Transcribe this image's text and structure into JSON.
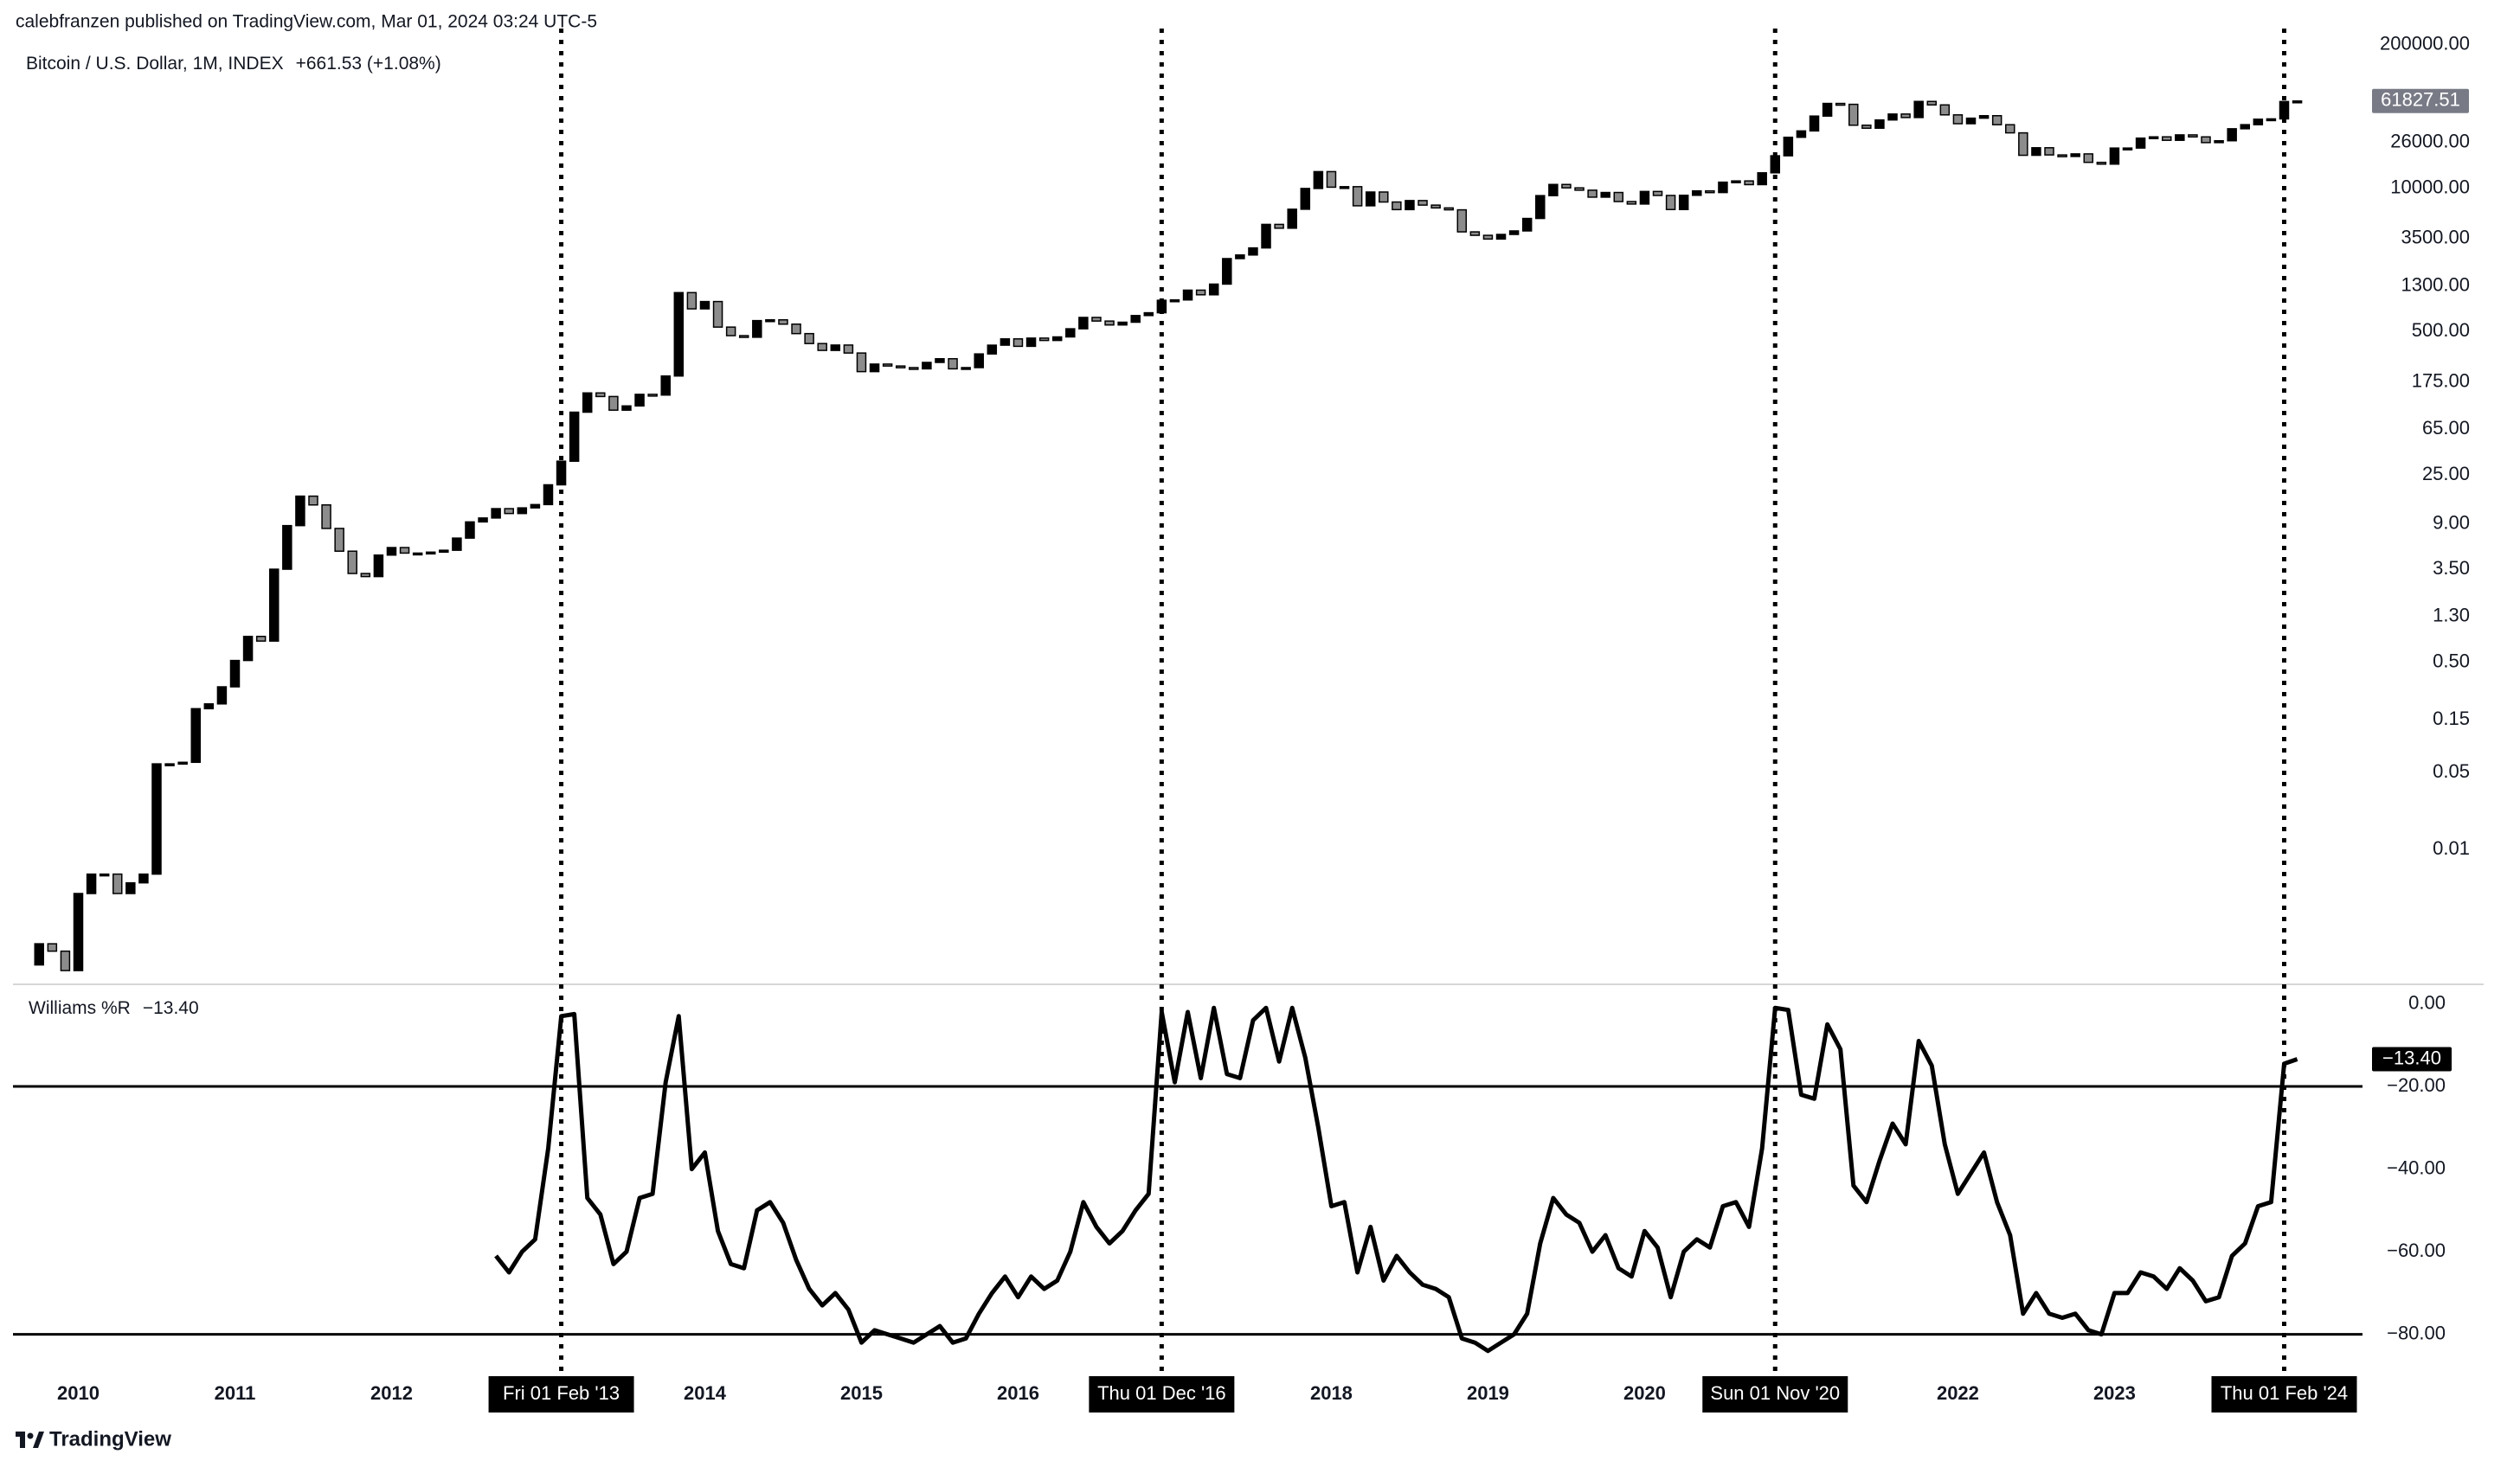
{
  "header": {
    "caption": "calebfranzen published on TradingView.com, Mar 01, 2024 03:24 UTC-5"
  },
  "footer": {
    "brand": "TradingView"
  },
  "chart_data": [
    {
      "type": "candlestick",
      "title": "Bitcoin / U.S. Dollar, 1M, INDEX",
      "change": "+661.53 (+1.08%)",
      "log_scale": true,
      "up_color": "#000000",
      "down_color": "#8c8c8c",
      "xlim": [
        "2009-07",
        "2024-08"
      ],
      "ylim": [
        0.0006,
        510000
      ],
      "yticks": [
        {
          "value": 200000,
          "label": "200000.00"
        },
        {
          "value": 26000,
          "label": "26000.00"
        },
        {
          "value": 10000,
          "label": "10000.00"
        },
        {
          "value": 3500,
          "label": "3500.00"
        },
        {
          "value": 1300,
          "label": "1300.00"
        },
        {
          "value": 500,
          "label": "500.00"
        },
        {
          "value": 175,
          "label": "175.00"
        },
        {
          "value": 65,
          "label": "65.00"
        },
        {
          "value": 25,
          "label": "25.00"
        },
        {
          "value": 9,
          "label": "9.00"
        },
        {
          "value": 3.5,
          "label": "3.50"
        },
        {
          "value": 1.3,
          "label": "1.30"
        },
        {
          "value": 0.5,
          "label": "0.50"
        },
        {
          "value": 0.15,
          "label": "0.15"
        },
        {
          "value": 0.05,
          "label": "0.05"
        },
        {
          "value": 0.01,
          "label": "0.01"
        }
      ],
      "first_open": 0.0009,
      "x": [
        "2009-10",
        "2009-11",
        "2009-12",
        "2010-01",
        "2010-02",
        "2010-03",
        "2010-04",
        "2010-05",
        "2010-06",
        "2010-07",
        "2010-08",
        "2010-09",
        "2010-10",
        "2010-11",
        "2010-12",
        "2011-01",
        "2011-02",
        "2011-03",
        "2011-04",
        "2011-05",
        "2011-06",
        "2011-07",
        "2011-08",
        "2011-09",
        "2011-10",
        "2011-11",
        "2011-12",
        "2012-01",
        "2012-02",
        "2012-03",
        "2012-04",
        "2012-05",
        "2012-06",
        "2012-07",
        "2012-08",
        "2012-09",
        "2012-10",
        "2012-11",
        "2012-12",
        "2013-01",
        "2013-02",
        "2013-03",
        "2013-04",
        "2013-05",
        "2013-06",
        "2013-07",
        "2013-08",
        "2013-09",
        "2013-10",
        "2013-11",
        "2013-12",
        "2014-01",
        "2014-02",
        "2014-03",
        "2014-04",
        "2014-05",
        "2014-06",
        "2014-07",
        "2014-08",
        "2014-09",
        "2014-10",
        "2014-11",
        "2014-12",
        "2015-01",
        "2015-02",
        "2015-03",
        "2015-04",
        "2015-05",
        "2015-06",
        "2015-07",
        "2015-08",
        "2015-09",
        "2015-10",
        "2015-11",
        "2015-12",
        "2016-01",
        "2016-02",
        "2016-03",
        "2016-04",
        "2016-05",
        "2016-06",
        "2016-07",
        "2016-08",
        "2016-09",
        "2016-10",
        "2016-11",
        "2016-12",
        "2017-01",
        "2017-02",
        "2017-03",
        "2017-04",
        "2017-05",
        "2017-06",
        "2017-07",
        "2017-08",
        "2017-09",
        "2017-10",
        "2017-11",
        "2017-12",
        "2018-01",
        "2018-02",
        "2018-03",
        "2018-04",
        "2018-05",
        "2018-06",
        "2018-07",
        "2018-08",
        "2018-09",
        "2018-10",
        "2018-11",
        "2018-12",
        "2019-01",
        "2019-02",
        "2019-03",
        "2019-04",
        "2019-05",
        "2019-06",
        "2019-07",
        "2019-08",
        "2019-09",
        "2019-10",
        "2019-11",
        "2019-12",
        "2020-01",
        "2020-02",
        "2020-03",
        "2020-04",
        "2020-05",
        "2020-06",
        "2020-07",
        "2020-08",
        "2020-09",
        "2020-10",
        "2020-11",
        "2020-12",
        "2021-01",
        "2021-02",
        "2021-03",
        "2021-04",
        "2021-05",
        "2021-06",
        "2021-07",
        "2021-08",
        "2021-09",
        "2021-10",
        "2021-11",
        "2021-12",
        "2022-01",
        "2022-02",
        "2022-03",
        "2022-04",
        "2022-05",
        "2022-06",
        "2022-07",
        "2022-08",
        "2022-09",
        "2022-10",
        "2022-11",
        "2022-12",
        "2023-01",
        "2023-02",
        "2023-03",
        "2023-04",
        "2023-05",
        "2023-06",
        "2023-07",
        "2023-08",
        "2023-09",
        "2023-10",
        "2023-11",
        "2023-12",
        "2024-01",
        "2024-02",
        "2024-03"
      ],
      "close": [
        0.0014,
        0.0012,
        0.0008,
        0.004,
        0.006,
        0.006,
        0.004,
        0.005,
        0.006,
        0.06,
        0.06,
        0.062,
        0.19,
        0.21,
        0.3,
        0.52,
        0.86,
        0.78,
        3.5,
        8.7,
        16.1,
        13.4,
        8.2,
        5.1,
        3.2,
        3.0,
        4.7,
        5.5,
        4.9,
        4.9,
        5.0,
        5.2,
        6.7,
        9.4,
        10.2,
        12.4,
        11.2,
        12.6,
        13.5,
        20.4,
        33.4,
        93,
        139,
        129,
        97,
        106,
        135,
        133,
        198,
        1130,
        805,
        938,
        550,
        460,
        445,
        630,
        640,
        585,
        480,
        390,
        338,
        378,
        320,
        217,
        254,
        244,
        236,
        230,
        263,
        284,
        230,
        236,
        314,
        377,
        430,
        368,
        437,
        416,
        448,
        531,
        673,
        624,
        575,
        609,
        700,
        742,
        963,
        970,
        1190,
        1080,
        1350,
        2300,
        2480,
        2875,
        4700,
        4340,
        6450,
        9950,
        14150,
        10220,
        10330,
        6930,
        9240,
        7500,
        6400,
        7730,
        7030,
        6630,
        6370,
        4020,
        3740,
        3460,
        3810,
        4100,
        5320,
        8570,
        10820,
        10080,
        9600,
        8300,
        9150,
        7570,
        7190,
        9350,
        8600,
        6410,
        8630,
        9460,
        9140,
        11350,
        11650,
        10780,
        13800,
        19700,
        28990,
        33110,
        45140,
        58800,
        57700,
        37300,
        35040,
        41630,
        47100,
        43800,
        61300,
        57000,
        46300,
        38500,
        43200,
        45500,
        37700,
        31800,
        19900,
        23300,
        20050,
        19420,
        20490,
        17170,
        16550,
        23140,
        23150,
        28480,
        29250,
        27220,
        30480,
        29230,
        25940,
        26960,
        34640,
        37720,
        42280,
        42580,
        61160,
        61827.51
      ]
    },
    {
      "type": "line",
      "title": "Williams %R",
      "current_label": "−13.40",
      "color": "#000000",
      "levels": [
        -20,
        -80
      ],
      "xlim": [
        "2009-07",
        "2024-08"
      ],
      "ylim": [
        -87.4,
        4.7
      ],
      "yticks": [
        {
          "value": 0,
          "label": "0.00"
        },
        {
          "value": -20,
          "label": "−20.00"
        },
        {
          "value": -40,
          "label": "−40.00"
        },
        {
          "value": -60,
          "label": "−60.00"
        },
        {
          "value": -80,
          "label": "−80.00"
        }
      ],
      "xticks": [
        {
          "value": "2010-01",
          "label": "2010"
        },
        {
          "value": "2011-01",
          "label": "2011"
        },
        {
          "value": "2012-01",
          "label": "2012"
        },
        {
          "value": "2014-01",
          "label": "2014"
        },
        {
          "value": "2015-01",
          "label": "2015"
        },
        {
          "value": "2016-01",
          "label": "2016"
        },
        {
          "value": "2018-01",
          "label": "2018"
        },
        {
          "value": "2019-01",
          "label": "2019"
        },
        {
          "value": "2020-01",
          "label": "2020"
        },
        {
          "value": "2022-01",
          "label": "2022"
        },
        {
          "value": "2023-01",
          "label": "2023"
        }
      ],
      "markers": [
        {
          "value": "2013-02",
          "label": "Fri 01 Feb '13"
        },
        {
          "value": "2016-12",
          "label": "Thu 01 Dec '16"
        },
        {
          "value": "2020-11",
          "label": "Sun 01 Nov '20"
        },
        {
          "value": "2024-02",
          "label": "Thu 01 Feb '24"
        }
      ],
      "x": [
        "2012-09",
        "2012-10",
        "2012-11",
        "2012-12",
        "2013-01",
        "2013-02",
        "2013-03",
        "2013-04",
        "2013-05",
        "2013-06",
        "2013-07",
        "2013-08",
        "2013-09",
        "2013-10",
        "2013-11",
        "2013-12",
        "2014-01",
        "2014-02",
        "2014-03",
        "2014-04",
        "2014-05",
        "2014-06",
        "2014-07",
        "2014-08",
        "2014-09",
        "2014-10",
        "2014-11",
        "2014-12",
        "2015-01",
        "2015-02",
        "2015-03",
        "2015-04",
        "2015-05",
        "2015-06",
        "2015-07",
        "2015-08",
        "2015-09",
        "2015-10",
        "2015-11",
        "2015-12",
        "2016-01",
        "2016-02",
        "2016-03",
        "2016-04",
        "2016-05",
        "2016-06",
        "2016-07",
        "2016-08",
        "2016-09",
        "2016-10",
        "2016-11",
        "2016-12",
        "2017-01",
        "2017-02",
        "2017-03",
        "2017-04",
        "2017-05",
        "2017-06",
        "2017-07",
        "2017-08",
        "2017-09",
        "2017-10",
        "2017-11",
        "2017-12",
        "2018-01",
        "2018-02",
        "2018-03",
        "2018-04",
        "2018-05",
        "2018-06",
        "2018-07",
        "2018-08",
        "2018-09",
        "2018-10",
        "2018-11",
        "2018-12",
        "2019-01",
        "2019-02",
        "2019-03",
        "2019-04",
        "2019-05",
        "2019-06",
        "2019-07",
        "2019-08",
        "2019-09",
        "2019-10",
        "2019-11",
        "2019-12",
        "2020-01",
        "2020-02",
        "2020-03",
        "2020-04",
        "2020-05",
        "2020-06",
        "2020-07",
        "2020-08",
        "2020-09",
        "2020-10",
        "2020-11",
        "2020-12",
        "2021-01",
        "2021-02",
        "2021-03",
        "2021-04",
        "2021-05",
        "2021-06",
        "2021-07",
        "2021-08",
        "2021-09",
        "2021-10",
        "2021-11",
        "2021-12",
        "2022-01",
        "2022-02",
        "2022-03",
        "2022-04",
        "2022-05",
        "2022-06",
        "2022-07",
        "2022-08",
        "2022-09",
        "2022-10",
        "2022-11",
        "2022-12",
        "2023-01",
        "2023-02",
        "2023-03",
        "2023-04",
        "2023-05",
        "2023-06",
        "2023-07",
        "2023-08",
        "2023-09",
        "2023-10",
        "2023-11",
        "2023-12",
        "2024-01",
        "2024-02",
        "2024-03"
      ],
      "values": [
        -61,
        -65,
        -60,
        -57,
        -35,
        -3,
        -2.5,
        -47,
        -51,
        -63,
        -60,
        -47,
        -46,
        -19,
        -3,
        -40,
        -36,
        -55,
        -63,
        -64,
        -50,
        -48,
        -53,
        -62,
        -69,
        -73,
        -70,
        -74,
        -82,
        -79,
        -80,
        -81,
        -82,
        -80,
        -78,
        -82,
        -81,
        -75,
        -70,
        -66,
        -71,
        -66,
        -69,
        -67,
        -60,
        -48,
        -54,
        -58,
        -55,
        -50,
        -46,
        -2,
        -19,
        -2,
        -18,
        -1,
        -17,
        -18,
        -4,
        -1,
        -14,
        -1,
        -13,
        -30,
        -49,
        -48,
        -65,
        -54,
        -67,
        -61,
        -65,
        -68,
        -69,
        -71,
        -81,
        -82,
        -84,
        -82,
        -80,
        -75,
        -58,
        -47,
        -51,
        -53,
        -60,
        -56,
        -64,
        -66,
        -55,
        -59,
        -71,
        -60,
        -57,
        -59,
        -49,
        -48,
        -54,
        -35,
        -1,
        -1.5,
        -22,
        -23,
        -5,
        -11,
        -44,
        -48,
        -38,
        -29,
        -34,
        -9,
        -15,
        -34,
        -46,
        -41,
        -36,
        -48,
        -56,
        -75,
        -70,
        -75,
        -76,
        -75,
        -79,
        -80,
        -70,
        -70,
        -65,
        -66,
        -69,
        -64,
        -67,
        -72,
        -71,
        -61,
        -58,
        -49,
        -48,
        -14.5,
        -13.4
      ]
    }
  ]
}
